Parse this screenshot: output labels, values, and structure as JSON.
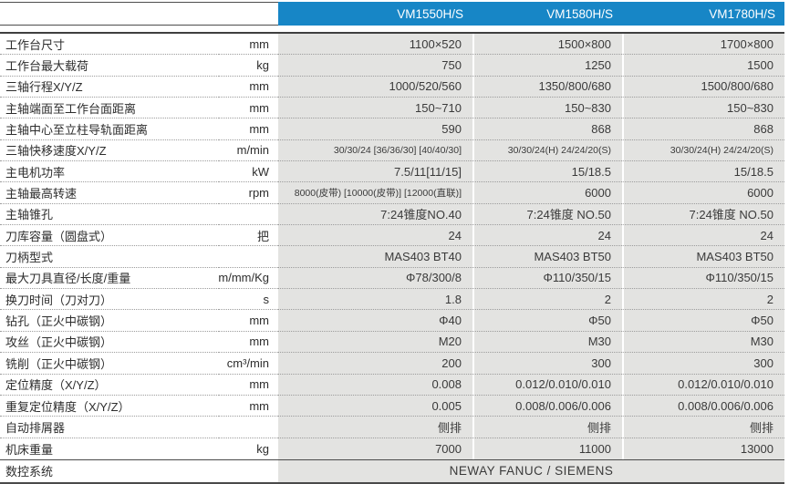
{
  "header": {
    "columns": [
      "VM1550H/S",
      "VM1580H/S",
      "VM1780H/S"
    ]
  },
  "rows": [
    {
      "label": "工作台尺寸",
      "unit": "mm",
      "values": [
        "1100×520",
        "1500×800",
        "1700×800"
      ]
    },
    {
      "label": "工作台最大载荷",
      "unit": "kg",
      "values": [
        "750",
        "1250",
        "1500"
      ]
    },
    {
      "label": "三轴行程X/Y/Z",
      "unit": "mm",
      "values": [
        "1000/520/560",
        "1350/800/680",
        "1500/800/680"
      ]
    },
    {
      "label": "主轴端面至工作台面距离",
      "unit": "mm",
      "values": [
        "150~710",
        "150~830",
        "150~830"
      ]
    },
    {
      "label": "主轴中心至立柱导轨面距离",
      "unit": "mm",
      "values": [
        "590",
        "868",
        "868"
      ]
    },
    {
      "label": "三轴快移速度X/Y/Z",
      "unit": "m/min",
      "values": [
        "30/30/24 [36/36/30] [40/40/30]",
        "30/30/24(H) 24/24/20(S)",
        "30/30/24(H) 24/24/20(S)"
      ]
    },
    {
      "label": "主电机功率",
      "unit": "kW",
      "values": [
        "7.5/11[11/15]",
        "15/18.5",
        "15/18.5"
      ]
    },
    {
      "label": "主轴最高转速",
      "unit": "rpm",
      "values": [
        "8000(皮带) [10000(皮带)] [12000(直联)]",
        "6000",
        "6000"
      ]
    },
    {
      "label": "主轴锥孔",
      "unit": "",
      "values": [
        "7:24锥度NO.40",
        "7:24锥度 NO.50",
        "7:24锥度 NO.50"
      ]
    },
    {
      "label": "刀库容量（圆盘式）",
      "unit": "把",
      "values": [
        "24",
        "24",
        "24"
      ]
    },
    {
      "label": "刀柄型式",
      "unit": "",
      "values": [
        "MAS403 BT40",
        "MAS403 BT50",
        "MAS403 BT50"
      ]
    },
    {
      "label": "最大刀具直径/长度/重量",
      "unit": "mm/mm/Kg",
      "values": [
        "Φ78/300/8",
        "Φ110/350/15",
        "Φ110/350/15"
      ]
    },
    {
      "label": "换刀时间（刀对刀）",
      "unit": "s",
      "values": [
        "1.8",
        "2",
        "2"
      ]
    },
    {
      "label": "钻孔（正火中碳钢）",
      "unit": "mm",
      "values": [
        "Φ40",
        "Φ50",
        "Φ50"
      ]
    },
    {
      "label": "攻丝（正火中碳钢）",
      "unit": "mm",
      "values": [
        "M20",
        "M30",
        "M30"
      ]
    },
    {
      "label": "铣削（正火中碳钢）",
      "unit": "cm³/min",
      "values": [
        "200",
        "300",
        "300"
      ]
    },
    {
      "label": "定位精度（X/Y/Z）",
      "unit": "mm",
      "values": [
        "0.008",
        "0.012/0.010/0.010",
        "0.012/0.010/0.010"
      ]
    },
    {
      "label": "重复定位精度（X/Y/Z）",
      "unit": "mm",
      "values": [
        "0.005",
        "0.008/0.006/0.006",
        "0.008/0.006/0.006"
      ]
    },
    {
      "label": "自动排屑器",
      "unit": "",
      "values": [
        "侧排",
        "侧排",
        "侧排"
      ]
    },
    {
      "label": "机床重量",
      "unit": "kg",
      "values": [
        "7000",
        "11000",
        "13000"
      ]
    }
  ],
  "footer": {
    "label": "数控系统",
    "value": "NEWAY FANUC / SIEMENS"
  },
  "colors": {
    "header_blue": "#1786c6",
    "cell_gray": "#e3e3e1"
  }
}
